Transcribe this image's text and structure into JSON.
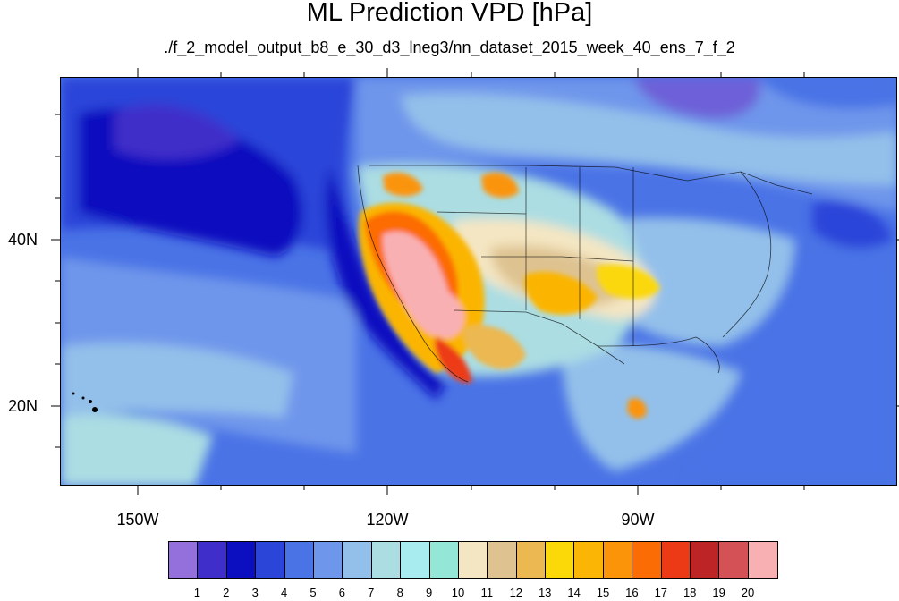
{
  "title": "ML Prediction VPD [hPa]",
  "subtitle": "./f_2_model_output_b8_e_30_d3_lneg3/nn_dataset_2015_week_40_ens_7_f_2",
  "axes": {
    "x_ticks": [
      "150W",
      "120W",
      "90W"
    ],
    "y_ticks": [
      "40N",
      "20N"
    ]
  },
  "colorbar": {
    "labels": [
      "1",
      "2",
      "3",
      "4",
      "5",
      "6",
      "7",
      "8",
      "9",
      "10",
      "11",
      "12",
      "13",
      "14",
      "15",
      "16",
      "17",
      "18",
      "19",
      "20"
    ],
    "colors": [
      "#9370db",
      "#3f2ec9",
      "#0b0fbf",
      "#2b45d9",
      "#4a73e6",
      "#6e96eb",
      "#93c0ea",
      "#abdde3",
      "#a8ecf0",
      "#94e7d6",
      "#f4e6c2",
      "#dec391",
      "#ebb851",
      "#fbd807",
      "#fbb504",
      "#fb9409",
      "#fc6c05",
      "#ec3a16",
      "#bc2426",
      "#d45255",
      "#f9b0b3"
    ]
  },
  "palette": {
    "ocean_deep": "#0b0fbf",
    "ocean_mid": "#2b45d9",
    "ocean_light": "#4a73e6",
    "ocean_pale": "#6e96eb",
    "sky": "#93c0ea",
    "land_cool": "#abdde3",
    "land_warm": "#f4e6c2",
    "land_hot": "#fb9409",
    "land_max": "#f9b0b3"
  }
}
